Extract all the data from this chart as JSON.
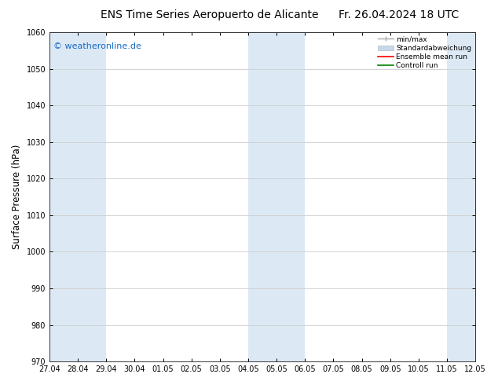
{
  "title_left": "ENS Time Series Aeropuerto de Alicante",
  "title_right": "Fr. 26.04.2024 18 UTC",
  "ylabel": "Surface Pressure (hPa)",
  "ylim": [
    970,
    1060
  ],
  "yticks": [
    970,
    980,
    990,
    1000,
    1010,
    1020,
    1030,
    1040,
    1050,
    1060
  ],
  "x_labels": [
    "27.04",
    "28.04",
    "29.04",
    "30.04",
    "01.05",
    "02.05",
    "03.05",
    "04.05",
    "05.05",
    "06.05",
    "07.05",
    "08.05",
    "09.05",
    "10.05",
    "11.05",
    "12.05"
  ],
  "shaded_color": "#dce9f5",
  "watermark_text": "© weatheronline.de",
  "watermark_color": "#1a6ac4",
  "background_color": "#ffffff",
  "plot_bg_color": "#ffffff",
  "grid_color": "#cccccc",
  "title_fontsize": 10,
  "tick_fontsize": 7,
  "ylabel_fontsize": 8.5,
  "watermark_fontsize": 8
}
